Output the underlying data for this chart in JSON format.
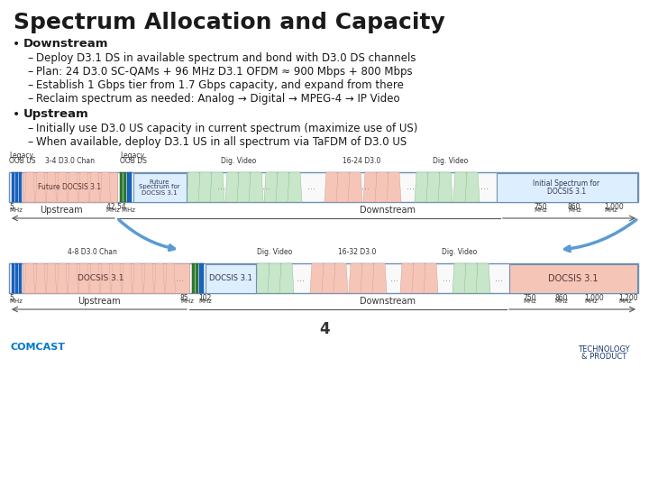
{
  "title": "Spectrum Allocation and Capacity",
  "bullet1_header": "Downstream",
  "bullet1_items": [
    "Deploy D3.1 DS in available spectrum and bond with D3.0 DS channels",
    "Plan: 24 D3.0 SC-QAMs + 96 MHz D3.1 OFDM ≈ 900 Mbps + 800 Mbps",
    "Establish 1 Gbps tier from 1.7 Gbps capacity, and expand from there",
    "Reclaim spectrum as needed: Analog → Digital → MPEG-4 → IP Video"
  ],
  "bullet2_header": "Upstream",
  "bullet2_items": [
    "Initially use D3.0 US capacity in current spectrum (maximize use of US)",
    "When available, deploy D3.1 US in all spectrum via TaFDM of D3.0 US"
  ],
  "page_number": "4",
  "bg_color": "#ffffff",
  "title_color": "#1a1a1a",
  "text_color": "#1a1a1a",
  "c_pink": "#f5c6b8",
  "c_green_light": "#c8e6c9",
  "c_blue_dark": "#1565c0",
  "c_green_dark": "#2e7d32",
  "c_border": "#7090b0"
}
